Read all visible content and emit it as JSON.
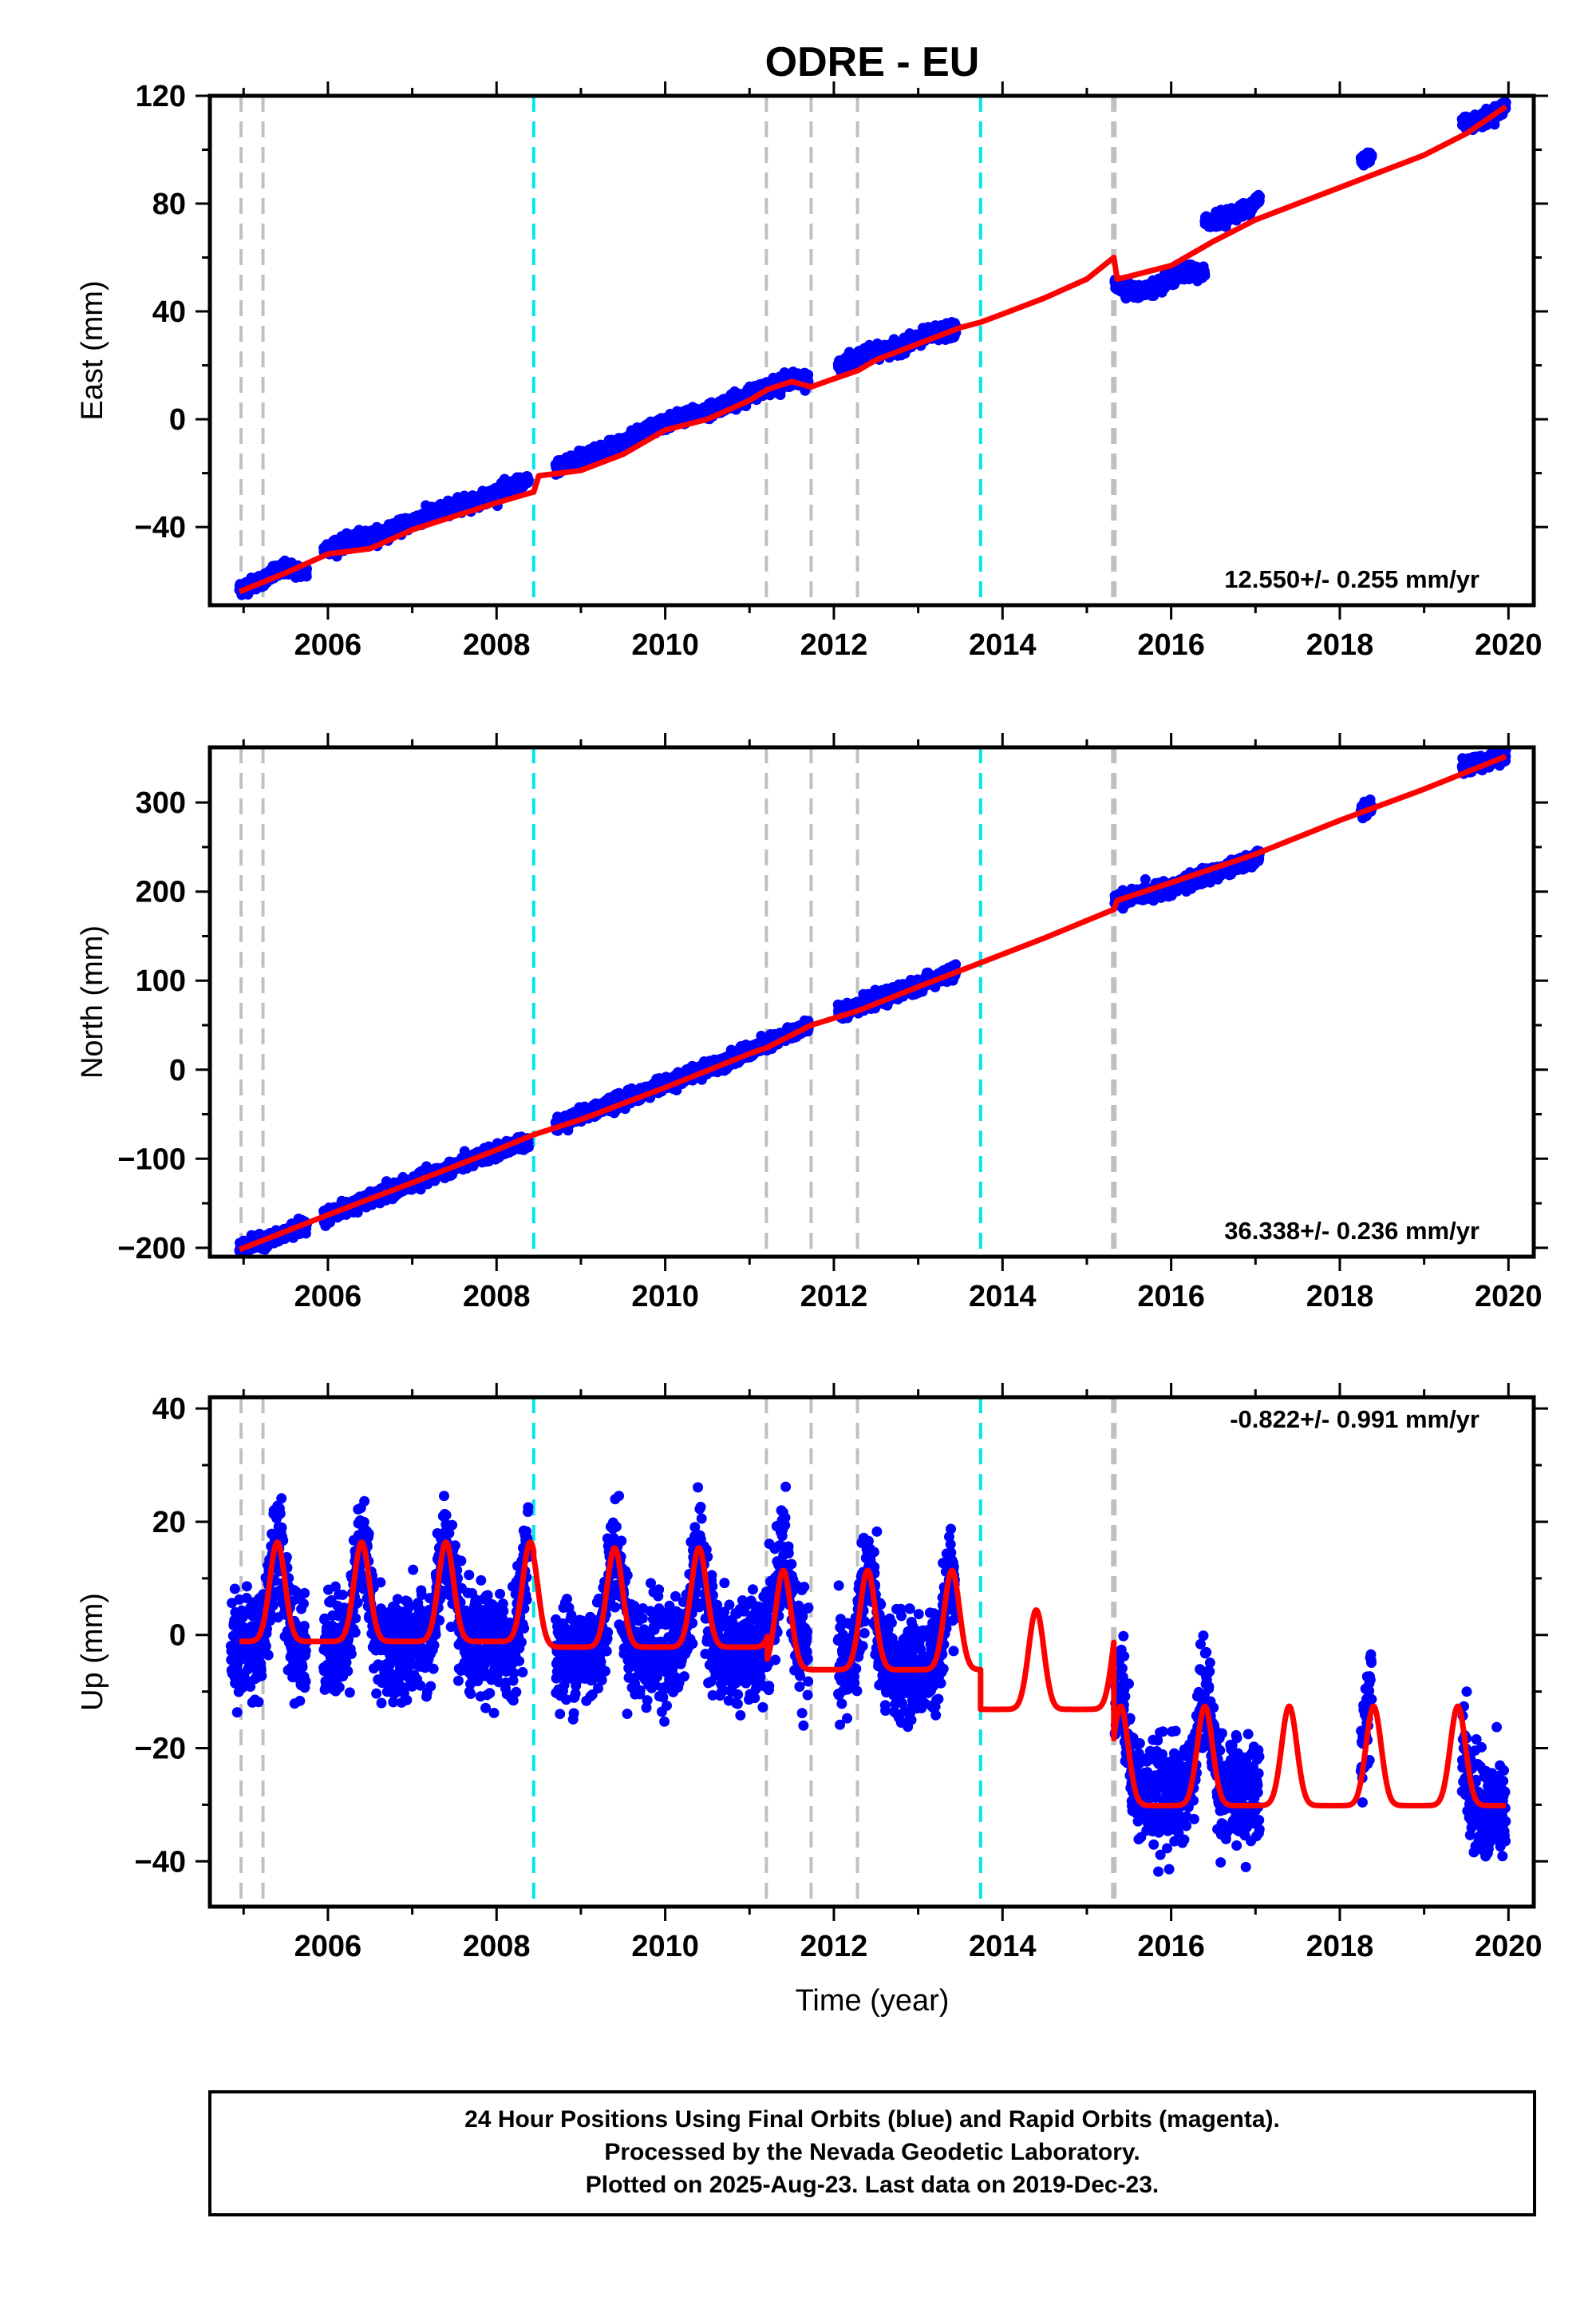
{
  "figure_title": "ODRE - EU",
  "x_axis_label": "Time (year)",
  "footer_lines": [
    "24 Hour Positions Using Final Orbits (blue) and Rapid Orbits (magenta).",
    "Processed by the Nevada Geodetic Laboratory.",
    "Plotted on 2025-Aug-23. Last data on 2019-Dec-23."
  ],
  "colors": {
    "final_orbit_points": "#0000ff",
    "model_line": "#ff0000",
    "equipment_change_line": "#c0c0c0",
    "earthquake_line": "#00e5ee",
    "frame": "#000000"
  },
  "chart_data": [
    {
      "type": "scatter",
      "ylabel": "East (mm)",
      "xlim": [
        2004.6,
        2020.3
      ],
      "ylim": [
        -69,
        120
      ],
      "xticks": [
        2006,
        2008,
        2010,
        2012,
        2014,
        2016,
        2018,
        2020
      ],
      "yticks": [
        -40,
        0,
        40,
        80,
        120
      ],
      "rate_label": "12.550+/- 0.255 mm/yr",
      "rate_position": "bottom-right",
      "series": [
        {
          "kind": "daily_positions_final_orbits",
          "segments": [
            {
              "x": [
                2004.95,
                2005.2,
                2005.5,
                2005.75
              ],
              "y": [
                -63,
                -60,
                -55,
                -57
              ]
            },
            {
              "x": [
                2005.95,
                2006.3,
                2006.7,
                2007.0,
                2007.4,
                2007.8,
                2008.1,
                2008.38
              ],
              "y": [
                -48,
                -45,
                -42,
                -38,
                -33,
                -30,
                -26,
                -23
              ]
            },
            {
              "x": [
                2008.7,
                2009.0,
                2009.4,
                2009.8,
                2010.1,
                2010.5,
                2010.9,
                2011.2,
                2011.5,
                2011.7
              ],
              "y": [
                -18,
                -14,
                -10,
                -4,
                0,
                3,
                8,
                12,
                15,
                14
              ]
            },
            {
              "x": [
                2012.05,
                2012.4,
                2012.8,
                2013.2,
                2013.45
              ],
              "y": [
                20,
                24,
                27,
                32,
                33
              ]
            },
            {
              "x": [
                2015.33,
                2015.6,
                2015.9,
                2016.2,
                2016.4
              ],
              "y": [
                50,
                47,
                50,
                55,
                54
              ]
            },
            {
              "x": [
                2016.4,
                2016.6,
                2016.9,
                2017.05
              ],
              "y": [
                73,
                75,
                78,
                82
              ]
            },
            {
              "x": [
                2018.25,
                2018.38
              ],
              "y": [
                96,
                98
              ]
            },
            {
              "x": [
                2019.45,
                2019.7,
                2019.97
              ],
              "y": [
                110,
                111,
                116
              ]
            }
          ]
        },
        {
          "kind": "model_fit",
          "x": [
            2004.95,
            2005.5,
            2006.0,
            2006.5,
            2007.0,
            2007.5,
            2008.0,
            2008.44,
            2008.5,
            2009.0,
            2009.5,
            2010.0,
            2010.5,
            2011.0,
            2011.21,
            2011.5,
            2011.73,
            2012.0,
            2012.28,
            2012.5,
            2013.0,
            2013.5,
            2013.74,
            2014.0,
            2014.5,
            2015.0,
            2015.32,
            2015.36,
            2015.5,
            2016.0,
            2016.5,
            2017.0,
            2017.5,
            2018.0,
            2018.5,
            2019.0,
            2019.5,
            2019.97
          ],
          "y": [
            -64,
            -57,
            -50,
            -48,
            -41,
            -36,
            -31,
            -27,
            -21,
            -19,
            -13,
            -4,
            0,
            7,
            11,
            14,
            12,
            15,
            18,
            22,
            28,
            34,
            36,
            39,
            45,
            52,
            60,
            52,
            53,
            57,
            66,
            74,
            80,
            86,
            92,
            98,
            106,
            116
          ]
        }
      ],
      "vertical_lines": {
        "equipment": [
          2004.97,
          2005.23,
          2011.2,
          2011.73,
          2012.28,
          2015.32
        ],
        "earthquake": [
          2008.44,
          2013.74
        ]
      }
    },
    {
      "type": "scatter",
      "ylabel": "North (mm)",
      "xlim": [
        2004.6,
        2020.3
      ],
      "ylim": [
        -210,
        362
      ],
      "xticks": [
        2006,
        2008,
        2010,
        2012,
        2014,
        2016,
        2018,
        2020
      ],
      "yticks": [
        -200,
        -100,
        0,
        100,
        200,
        300
      ],
      "rate_label": "36.338+/- 0.236 mm/yr",
      "rate_position": "bottom-right",
      "series": [
        {
          "kind": "daily_positions_final_orbits",
          "segments": [
            {
              "x": [
                2004.95,
                2005.4,
                2005.75
              ],
              "y": [
                -200,
                -188,
                -173
              ]
            },
            {
              "x": [
                2005.95,
                2006.5,
                2007.0,
                2007.5,
                2008.0,
                2008.38
              ],
              "y": [
                -165,
                -146,
                -127,
                -109,
                -92,
                -80
              ]
            },
            {
              "x": [
                2008.7,
                2009.2,
                2009.7,
                2010.2,
                2010.7,
                2011.2,
                2011.7
              ],
              "y": [
                -62,
                -44,
                -27,
                -9,
                9,
                28,
                50
              ]
            },
            {
              "x": [
                2012.05,
                2012.5,
                2013.0,
                2013.45
              ],
              "y": [
                65,
                78,
                95,
                110
              ]
            },
            {
              "x": [
                2015.33,
                2015.8,
                2016.3,
                2016.8,
                2017.05
              ],
              "y": [
                190,
                200,
                214,
                230,
                240
              ]
            },
            {
              "x": [
                2018.25,
                2018.38
              ],
              "y": [
                290,
                295
              ]
            },
            {
              "x": [
                2019.45,
                2019.7,
                2019.97
              ],
              "y": [
                340,
                345,
                352
              ]
            }
          ]
        },
        {
          "kind": "model_fit",
          "x": [
            2004.95,
            2006.0,
            2007.0,
            2008.0,
            2008.44,
            2009.0,
            2010.0,
            2011.0,
            2011.21,
            2011.73,
            2012.28,
            2013.0,
            2013.74,
            2014.5,
            2015.32,
            2015.36,
            2016.0,
            2017.0,
            2018.0,
            2019.0,
            2019.97
          ],
          "y": [
            -202,
            -163,
            -127,
            -90,
            -73,
            -56,
            -20,
            18,
            25,
            50,
            66,
            93,
            120,
            148,
            180,
            190,
            210,
            242,
            280,
            315,
            352
          ]
        }
      ],
      "vertical_lines": {
        "equipment": [
          2004.97,
          2005.23,
          2011.2,
          2011.73,
          2012.28,
          2015.32
        ],
        "earthquake": [
          2008.44,
          2013.74
        ]
      }
    },
    {
      "type": "scatter",
      "ylabel": "Up (mm)",
      "xlim": [
        2004.6,
        2020.3
      ],
      "ylim": [
        -48,
        42
      ],
      "xticks": [
        2006,
        2008,
        2010,
        2012,
        2014,
        2016,
        2018,
        2020
      ],
      "yticks": [
        -40,
        -20,
        0,
        20,
        40
      ],
      "rate_label": "-0.822+/- 0.991 mm/yr",
      "rate_position": "top-right",
      "series": [
        {
          "kind": "daily_positions_final_orbits",
          "seasonal": {
            "period_years": 1.0,
            "peak_phase": 0.4,
            "amplitude": 13,
            "scatter_mm": 4.5
          },
          "segments": [
            {
              "x0": 2004.85,
              "x1": 2005.75,
              "offset": 5
            },
            {
              "x0": 2005.95,
              "x1": 2008.38,
              "offset": 5
            },
            {
              "x0": 2008.7,
              "x1": 2011.7,
              "offset": 4
            },
            {
              "x0": 2012.05,
              "x1": 2013.45,
              "offset": 1
            },
            {
              "x0": 2015.33,
              "x1": 2017.05,
              "offset": -21
            },
            {
              "x0": 2018.25,
              "x1": 2018.38,
              "offset": -18
            },
            {
              "x0": 2019.45,
              "x1": 2019.97,
              "offset": -24
            }
          ]
        },
        {
          "kind": "model_fit",
          "seasonal": {
            "period_years": 1.0,
            "peak_phase": 0.4,
            "amplitude": 13
          },
          "offsets": [
            {
              "x0": 2004.95,
              "x1": 2008.44,
              "offset": 6
            },
            {
              "x0": 2008.44,
              "x1": 2011.21,
              "offset": 5
            },
            {
              "x0": 2011.21,
              "x1": 2013.74,
              "offset": 1
            },
            {
              "x0": 2013.74,
              "x1": 2015.32,
              "offset": -6
            },
            {
              "x0": 2015.32,
              "x1": 2019.97,
              "offset": -23
            }
          ]
        }
      ],
      "vertical_lines": {
        "equipment": [
          2004.97,
          2005.23,
          2011.2,
          2011.73,
          2012.28,
          2015.32
        ],
        "earthquake": [
          2008.44,
          2013.74
        ]
      }
    }
  ]
}
